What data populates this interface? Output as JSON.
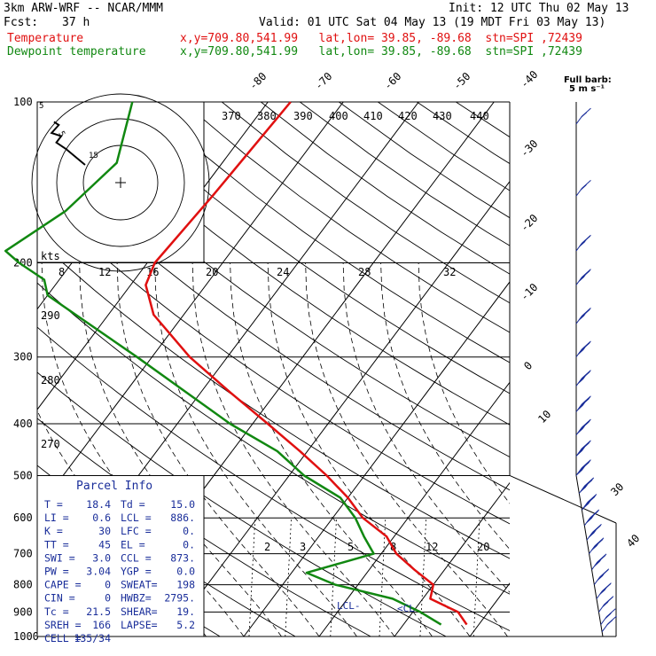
{
  "header": {
    "model": "3km ARW-WRF -- NCAR/MMM",
    "init": "Init: 12 UTC Thu 02 May 13",
    "fcst_label": "Fcst:",
    "fcst_value": "37 h",
    "valid": "Valid: 01 UTC Sat 04 May 13 (19 MDT Fri 03 May 13)",
    "series1_name": "Temperature",
    "series1_info": "x,y=709.80,541.99   lat,lon= 39.85, -89.68  stn=SPI ,72439",
    "series2_name": "Dewpoint temperature",
    "series2_info": "x,y=709.80,541.99   lat,lon= 39.85, -89.68  stn=SPI ,72439",
    "barb_title": "Full barb:",
    "barb_units": "5 m s⁻¹"
  },
  "colors": {
    "temperature": "#e01010",
    "dewpoint": "#118811",
    "isotherm": "#000000",
    "panel_text": "#1a2e9a",
    "barb": "#1a2e9a"
  },
  "chart_data": {
    "type": "line",
    "pressure_labels": [
      "100",
      "200",
      "300",
      "400",
      "500",
      "600",
      "700",
      "800",
      "900",
      "1000"
    ],
    "pressure_levels": [
      100,
      200,
      300,
      400,
      500,
      600,
      700,
      800,
      900,
      1000
    ],
    "ylim": [
      100,
      1000
    ],
    "temperature_tick_labels": [
      "-80",
      "-70",
      "-60",
      "-50",
      "-40",
      "-30",
      "-20",
      "-10",
      "0",
      "10",
      "30",
      "40"
    ],
    "theta_labels": [
      "370",
      "380",
      "390",
      "400",
      "410",
      "420",
      "430",
      "440",
      "290",
      "280",
      "270"
    ],
    "mixing_ratio_labels": [
      "2",
      "3",
      "5",
      "8",
      "12",
      "20"
    ],
    "series": [
      {
        "name": "Temperature",
        "points": [
          [
            100,
            -57
          ],
          [
            150,
            -58
          ],
          [
            200,
            -59
          ],
          [
            220,
            -58
          ],
          [
            250,
            -54
          ],
          [
            300,
            -45
          ],
          [
            350,
            -36
          ],
          [
            400,
            -28
          ],
          [
            450,
            -21
          ],
          [
            500,
            -15
          ],
          [
            550,
            -10
          ],
          [
            600,
            -6
          ],
          [
            650,
            -1
          ],
          [
            700,
            2
          ],
          [
            750,
            6
          ],
          [
            800,
            10
          ],
          [
            850,
            11
          ],
          [
            900,
            16
          ],
          [
            950,
            18.4
          ]
        ]
      },
      {
        "name": "Dewpoint temperature",
        "points": [
          [
            100,
            -78
          ],
          [
            130,
            -74
          ],
          [
            160,
            -76
          ],
          [
            190,
            -80
          ],
          [
            200,
            -77
          ],
          [
            215,
            -72
          ],
          [
            230,
            -70
          ],
          [
            300,
            -52
          ],
          [
            400,
            -33
          ],
          [
            450,
            -24
          ],
          [
            500,
            -18
          ],
          [
            550,
            -11
          ],
          [
            600,
            -7
          ],
          [
            650,
            -4
          ],
          [
            700,
            -1
          ],
          [
            760,
            -8
          ],
          [
            800,
            -3
          ],
          [
            850,
            6
          ],
          [
            900,
            11
          ],
          [
            950,
            15
          ]
        ]
      }
    ],
    "hodograph": {
      "units_label": "kts",
      "ring_labels": [
        "8",
        "12",
        "16",
        "20",
        "24",
        "28",
        "32"
      ],
      "corner_labels": [
        "5",
        "5",
        "15"
      ],
      "trace": [
        [
          0,
          0
        ],
        [
          -8,
          10
        ],
        [
          -12,
          14
        ],
        [
          -10,
          18
        ],
        [
          -14,
          20
        ],
        [
          -11,
          25
        ],
        [
          -13,
          27
        ]
      ]
    },
    "lcl_labels": [
      "LCL",
      "CCL"
    ],
    "wind_barb_label_right": [
      "30",
      "40"
    ],
    "wind_barbs": [
      {
        "p": 110,
        "spd": 10
      },
      {
        "p": 150,
        "spd": 15
      },
      {
        "p": 190,
        "spd": 25
      },
      {
        "p": 220,
        "spd": 30
      },
      {
        "p": 260,
        "spd": 30
      },
      {
        "p": 300,
        "spd": 35
      },
      {
        "p": 340,
        "spd": 35
      },
      {
        "p": 380,
        "spd": 40
      },
      {
        "p": 420,
        "spd": 40
      },
      {
        "p": 460,
        "spd": 45
      },
      {
        "p": 500,
        "spd": 45
      },
      {
        "p": 540,
        "spd": 40
      },
      {
        "p": 580,
        "spd": 40
      },
      {
        "p": 620,
        "spd": 35
      },
      {
        "p": 660,
        "spd": 35
      },
      {
        "p": 700,
        "spd": 30
      },
      {
        "p": 750,
        "spd": 30
      },
      {
        "p": 800,
        "spd": 25
      },
      {
        "p": 850,
        "spd": 25
      },
      {
        "p": 900,
        "spd": 20
      },
      {
        "p": 950,
        "spd": 15
      },
      {
        "p": 980,
        "spd": 10
      }
    ]
  },
  "parcel_info": {
    "title": "Parcel Info",
    "rows": [
      [
        "T   =",
        "18.4",
        "Td =",
        "15.0"
      ],
      [
        "LI  =",
        "0.6",
        "LCL =",
        "886."
      ],
      [
        "K   =",
        "30",
        "LFC =",
        "0."
      ],
      [
        "TT  =",
        "45",
        "EL  =",
        "0."
      ],
      [
        "SWI =",
        "3.0",
        "CCL =",
        "873."
      ],
      [
        "PW  =",
        "3.04",
        "YGP =",
        "0.0"
      ],
      [
        "CAPE =",
        "0",
        "SWEAT=",
        "198"
      ],
      [
        "CIN  =",
        "0",
        "HWBZ=",
        "2795."
      ],
      [
        "Tc  =",
        "21.5",
        "SHEAR=",
        "19."
      ],
      [
        "SREH =",
        "166",
        "LAPSE=",
        "5.2"
      ],
      [
        "CELL =",
        "135/34",
        "",
        ""
      ]
    ]
  }
}
